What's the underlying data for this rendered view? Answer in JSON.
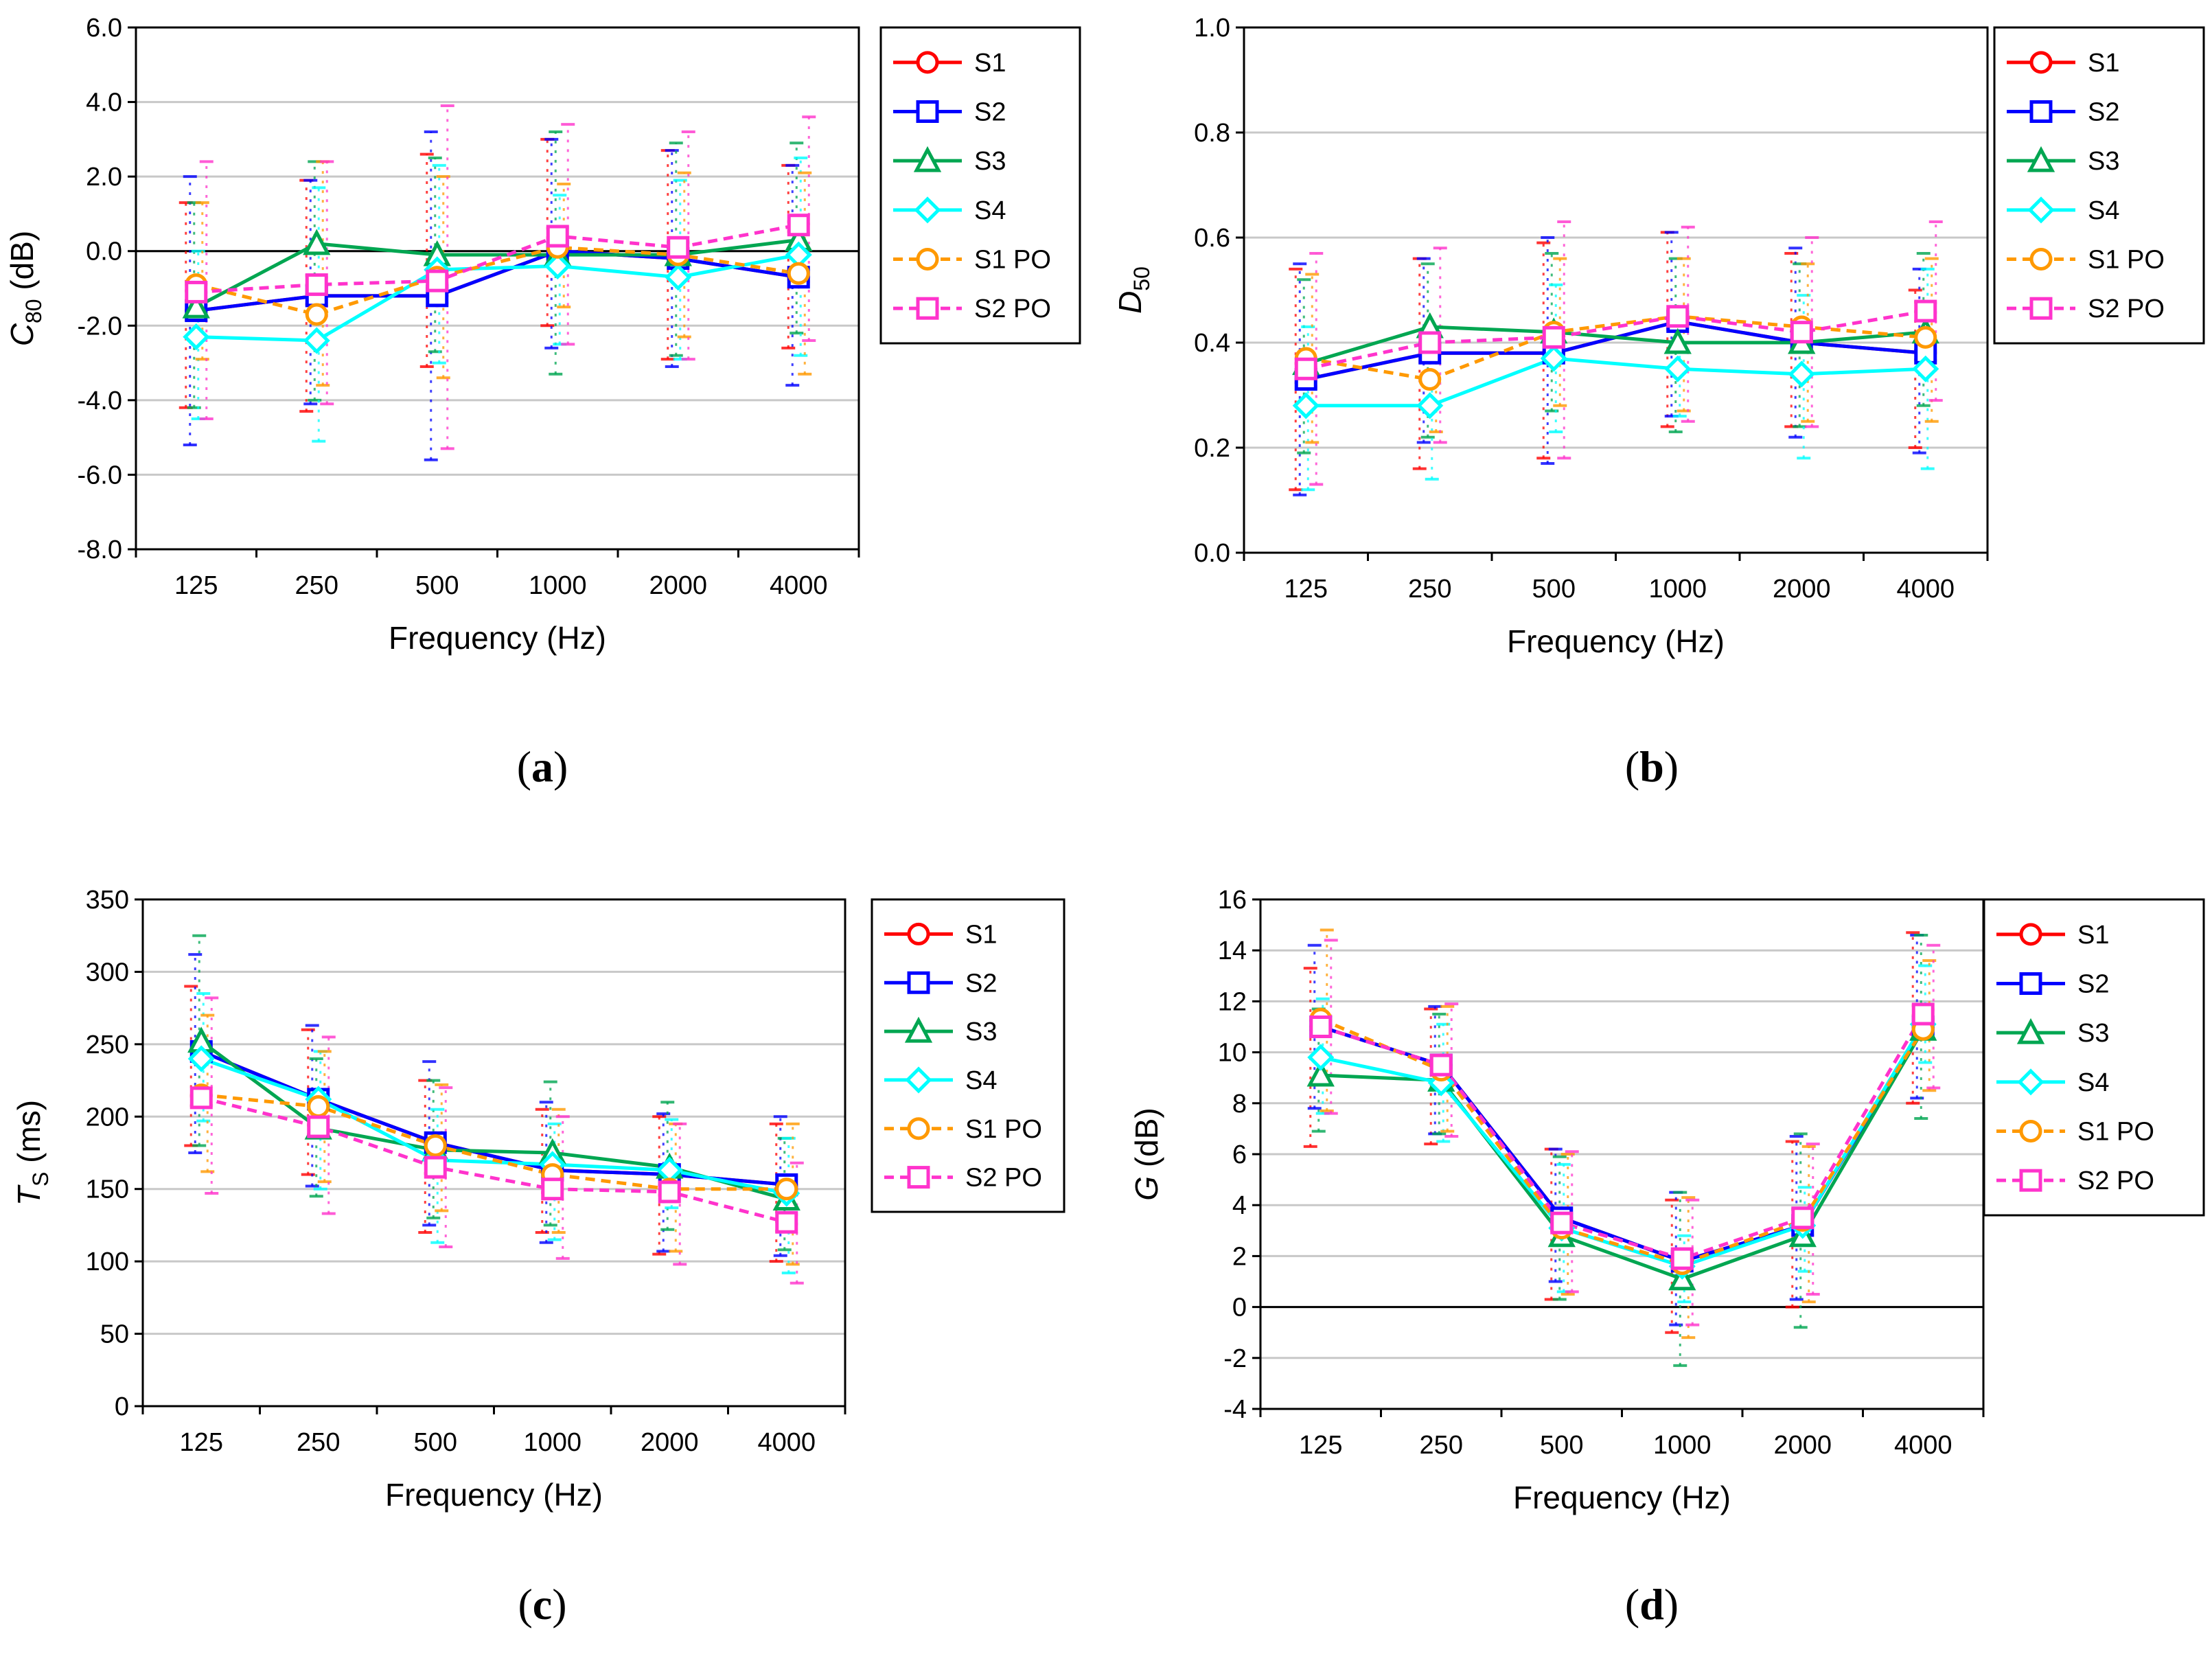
{
  "figure": {
    "series_styles": [
      {
        "name": "S1",
        "color": "#ff0000",
        "marker": "circle",
        "dash": false
      },
      {
        "name": "S2",
        "color": "#0000ff",
        "marker": "square",
        "dash": false
      },
      {
        "name": "S3",
        "color": "#00a651",
        "marker": "triangle",
        "dash": false
      },
      {
        "name": "S4",
        "color": "#00ffff",
        "marker": "diamond",
        "dash": false
      },
      {
        "name": "S1 PO",
        "color": "#ff9900",
        "marker": "circle",
        "dash": true
      },
      {
        "name": "S2 PO",
        "color": "#ff33cc",
        "marker": "square",
        "dash": true
      }
    ]
  },
  "captions": {
    "a": {
      "open": "(",
      "letter": "a",
      "close": ")"
    },
    "b": {
      "open": "(",
      "letter": "b",
      "close": ")"
    },
    "c": {
      "open": "(",
      "letter": "c",
      "close": ")"
    },
    "d": {
      "open": "(",
      "letter": "d",
      "close": ")"
    }
  },
  "chart_data": [
    {
      "id": "a",
      "type": "line",
      "ylabel_main": "C",
      "ylabel_sub": "80",
      "ylabel_rest": " (dB)",
      "ylabel_italic": true,
      "xlabel": "Frequency (Hz)",
      "categories": [
        "125",
        "250",
        "500",
        "1000",
        "2000",
        "4000"
      ],
      "ylim": [
        -8,
        6
      ],
      "yticks": [
        -8,
        -6,
        -4,
        -2,
        0,
        2,
        4,
        6
      ],
      "ytick_labels": [
        "-8.0",
        "-6.0",
        "-4.0",
        "-2.0",
        "0.0",
        "2.0",
        "4.0",
        "6.0"
      ],
      "zero_line": true,
      "series": [
        {
          "name": "S1",
          "values": [
            -1.6,
            -1.2,
            -1.2,
            0.0,
            -0.2,
            -0.7
          ],
          "err_low": [
            -4.2,
            -4.3,
            -3.1,
            -2.0,
            -2.9,
            -2.6
          ],
          "err_high": [
            1.3,
            1.9,
            2.6,
            3.0,
            2.7,
            2.3
          ]
        },
        {
          "name": "S2",
          "values": [
            -1.6,
            -1.2,
            -1.2,
            0.0,
            -0.2,
            -0.7
          ],
          "err_low": [
            -5.2,
            -4.1,
            -5.6,
            -2.6,
            -3.1,
            -3.6
          ],
          "err_high": [
            2.0,
            1.9,
            3.2,
            3.0,
            2.7,
            2.3
          ]
        },
        {
          "name": "S3",
          "values": [
            -1.5,
            0.2,
            -0.1,
            -0.1,
            -0.1,
            0.3
          ],
          "err_low": [
            -4.2,
            -4.0,
            -2.7,
            -3.3,
            -2.8,
            -2.2
          ],
          "err_high": [
            1.3,
            2.4,
            2.5,
            3.2,
            2.9,
            2.9
          ]
        },
        {
          "name": "S4",
          "values": [
            -2.3,
            -2.4,
            -0.5,
            -0.4,
            -0.7,
            -0.1
          ],
          "err_low": [
            -4.5,
            -5.1,
            -3.0,
            -2.5,
            -2.9,
            -2.8
          ],
          "err_high": [
            0.0,
            1.7,
            2.3,
            1.5,
            1.9,
            2.5
          ]
        },
        {
          "name": "S1 PO",
          "values": [
            -0.9,
            -1.7,
            -0.7,
            0.1,
            -0.1,
            -0.6
          ],
          "err_low": [
            -2.9,
            -3.6,
            -3.4,
            -1.5,
            -2.3,
            -3.3
          ],
          "err_high": [
            1.3,
            2.4,
            2.0,
            1.8,
            2.1,
            2.1
          ]
        },
        {
          "name": "S2 PO",
          "values": [
            -1.1,
            -0.9,
            -0.8,
            0.4,
            0.1,
            0.7
          ],
          "err_low": [
            -4.5,
            -4.1,
            -5.3,
            -2.5,
            -2.9,
            -2.4
          ],
          "err_high": [
            2.4,
            2.4,
            3.9,
            3.4,
            3.2,
            3.6
          ]
        }
      ]
    },
    {
      "id": "b",
      "type": "line",
      "ylabel_main": "D",
      "ylabel_sub": "50",
      "ylabel_rest": "",
      "ylabel_italic": true,
      "xlabel": "Frequency (Hz)",
      "categories": [
        "125",
        "250",
        "500",
        "1000",
        "2000",
        "4000"
      ],
      "ylim": [
        0,
        1
      ],
      "yticks": [
        0,
        0.2,
        0.4,
        0.6,
        0.8,
        1.0
      ],
      "ytick_labels": [
        "0.0",
        "0.2",
        "0.4",
        "0.6",
        "0.8",
        "1.0"
      ],
      "zero_line": false,
      "series": [
        {
          "name": "S1",
          "values": [
            0.33,
            0.38,
            0.38,
            0.44,
            0.4,
            0.38
          ],
          "err_low": [
            0.12,
            0.16,
            0.18,
            0.24,
            0.24,
            0.2
          ],
          "err_high": [
            0.54,
            0.56,
            0.59,
            0.61,
            0.57,
            0.5
          ]
        },
        {
          "name": "S2",
          "values": [
            0.33,
            0.38,
            0.38,
            0.44,
            0.4,
            0.38
          ],
          "err_low": [
            0.11,
            0.21,
            0.17,
            0.26,
            0.22,
            0.19
          ],
          "err_high": [
            0.55,
            0.56,
            0.6,
            0.61,
            0.58,
            0.54
          ]
        },
        {
          "name": "S3",
          "values": [
            0.36,
            0.43,
            0.42,
            0.4,
            0.4,
            0.42
          ],
          "err_low": [
            0.19,
            0.22,
            0.27,
            0.23,
            0.24,
            0.28
          ],
          "err_high": [
            0.52,
            0.55,
            0.57,
            0.56,
            0.55,
            0.57
          ]
        },
        {
          "name": "S4",
          "values": [
            0.28,
            0.28,
            0.37,
            0.35,
            0.34,
            0.35
          ],
          "err_low": [
            0.12,
            0.14,
            0.23,
            0.26,
            0.18,
            0.16
          ],
          "err_high": [
            0.43,
            0.42,
            0.51,
            0.45,
            0.49,
            0.54
          ]
        },
        {
          "name": "S1 PO",
          "values": [
            0.37,
            0.33,
            0.42,
            0.45,
            0.43,
            0.41
          ],
          "err_low": [
            0.21,
            0.23,
            0.28,
            0.27,
            0.25,
            0.25
          ],
          "err_high": [
            0.53,
            0.43,
            0.56,
            0.56,
            0.55,
            0.56
          ]
        },
        {
          "name": "S2 PO",
          "values": [
            0.35,
            0.4,
            0.41,
            0.45,
            0.42,
            0.46
          ],
          "err_low": [
            0.13,
            0.21,
            0.18,
            0.25,
            0.24,
            0.29
          ],
          "err_high": [
            0.57,
            0.58,
            0.63,
            0.62,
            0.6,
            0.63
          ]
        }
      ]
    },
    {
      "id": "c",
      "type": "line",
      "ylabel_main": "T",
      "ylabel_sub": "S",
      "ylabel_rest": " (ms)",
      "ylabel_italic": true,
      "xlabel": "Frequency (Hz)",
      "categories": [
        "125",
        "250",
        "500",
        "1000",
        "2000",
        "4000"
      ],
      "ylim": [
        0,
        350
      ],
      "yticks": [
        0,
        50,
        100,
        150,
        200,
        250,
        300,
        350
      ],
      "ytick_labels": [
        "0",
        "50",
        "100",
        "150",
        "200",
        "250",
        "300",
        "350"
      ],
      "zero_line": false,
      "series": [
        {
          "name": "S1",
          "values": [
            245,
            212,
            182,
            163,
            160,
            153
          ],
          "err_low": [
            180,
            160,
            120,
            120,
            105,
            100
          ],
          "err_high": [
            290,
            260,
            225,
            205,
            200,
            195
          ]
        },
        {
          "name": "S2",
          "values": [
            245,
            212,
            182,
            163,
            160,
            153
          ],
          "err_low": [
            175,
            152,
            125,
            113,
            107,
            104
          ],
          "err_high": [
            312,
            263,
            238,
            210,
            202,
            200
          ]
        },
        {
          "name": "S3",
          "values": [
            252,
            192,
            177,
            175,
            165,
            143
          ],
          "err_low": [
            180,
            145,
            130,
            125,
            122,
            108
          ],
          "err_high": [
            325,
            240,
            225,
            224,
            210,
            185
          ]
        },
        {
          "name": "S4",
          "values": [
            240,
            212,
            170,
            167,
            163,
            147
          ],
          "err_low": [
            197,
            150,
            113,
            115,
            137,
            92
          ],
          "err_high": [
            285,
            245,
            205,
            195,
            198,
            185
          ]
        },
        {
          "name": "S1 PO",
          "values": [
            215,
            207,
            180,
            160,
            150,
            150
          ],
          "err_low": [
            162,
            155,
            135,
            120,
            107,
            98
          ],
          "err_high": [
            270,
            245,
            222,
            205,
            195,
            195
          ]
        },
        {
          "name": "S2 PO",
          "values": [
            213,
            193,
            165,
            150,
            148,
            127
          ],
          "err_low": [
            147,
            133,
            110,
            102,
            98,
            85
          ],
          "err_high": [
            282,
            255,
            220,
            200,
            195,
            168
          ]
        }
      ]
    },
    {
      "id": "d",
      "type": "line",
      "ylabel_main": "G",
      "ylabel_sub": "",
      "ylabel_rest": " (dB)",
      "ylabel_italic": true,
      "xlabel": "Frequency (Hz)",
      "categories": [
        "125",
        "250",
        "500",
        "1000",
        "2000",
        "4000"
      ],
      "ylim": [
        -4,
        16
      ],
      "yticks": [
        -4,
        -2,
        0,
        2,
        4,
        6,
        8,
        10,
        12,
        14,
        16
      ],
      "ytick_labels": [
        "-4",
        "-2",
        "0",
        "2",
        "4",
        "6",
        "8",
        "10",
        "12",
        "14",
        "16"
      ],
      "zero_line": true,
      "series": [
        {
          "name": "S1",
          "values": [
            11.0,
            9.5,
            3.5,
            1.8,
            3.2,
            11.0
          ],
          "err_low": [
            6.3,
            6.4,
            0.3,
            -1.0,
            0.0,
            8.0
          ],
          "err_high": [
            13.3,
            11.7,
            6.2,
            4.2,
            6.5,
            14.7
          ]
        },
        {
          "name": "S2",
          "values": [
            11.0,
            9.5,
            3.5,
            1.8,
            3.2,
            11.0
          ],
          "err_low": [
            7.8,
            6.8,
            1.0,
            -0.7,
            0.3,
            8.2
          ],
          "err_high": [
            14.2,
            11.8,
            6.2,
            4.5,
            6.7,
            14.6
          ]
        },
        {
          "name": "S3",
          "values": [
            9.1,
            8.9,
            2.8,
            1.1,
            2.8,
            10.9
          ],
          "err_low": [
            6.9,
            6.8,
            0.3,
            -2.3,
            -0.8,
            7.4
          ],
          "err_high": [
            11.7,
            11.5,
            5.9,
            4.5,
            6.8,
            14.6
          ]
        },
        {
          "name": "S4",
          "values": [
            9.8,
            8.8,
            3.1,
            1.6,
            3.2,
            11.1
          ],
          "err_low": [
            7.6,
            6.5,
            0.6,
            0.2,
            1.4,
            9.6
          ],
          "err_high": [
            12.1,
            11.1,
            5.6,
            2.8,
            4.7,
            13.4
          ]
        },
        {
          "name": "S1 PO",
          "values": [
            11.3,
            9.3,
            3.1,
            1.7,
            3.4,
            10.9
          ],
          "err_low": [
            7.7,
            6.9,
            0.5,
            -1.2,
            0.2,
            8.5
          ],
          "err_high": [
            14.8,
            11.8,
            6.0,
            4.3,
            6.3,
            13.6
          ]
        },
        {
          "name": "S2 PO",
          "values": [
            11.0,
            9.5,
            3.3,
            1.9,
            3.5,
            11.5
          ],
          "err_low": [
            7.6,
            6.7,
            0.6,
            -0.7,
            0.5,
            8.6
          ],
          "err_high": [
            14.4,
            11.9,
            6.1,
            4.2,
            6.4,
            14.2
          ]
        }
      ]
    }
  ]
}
